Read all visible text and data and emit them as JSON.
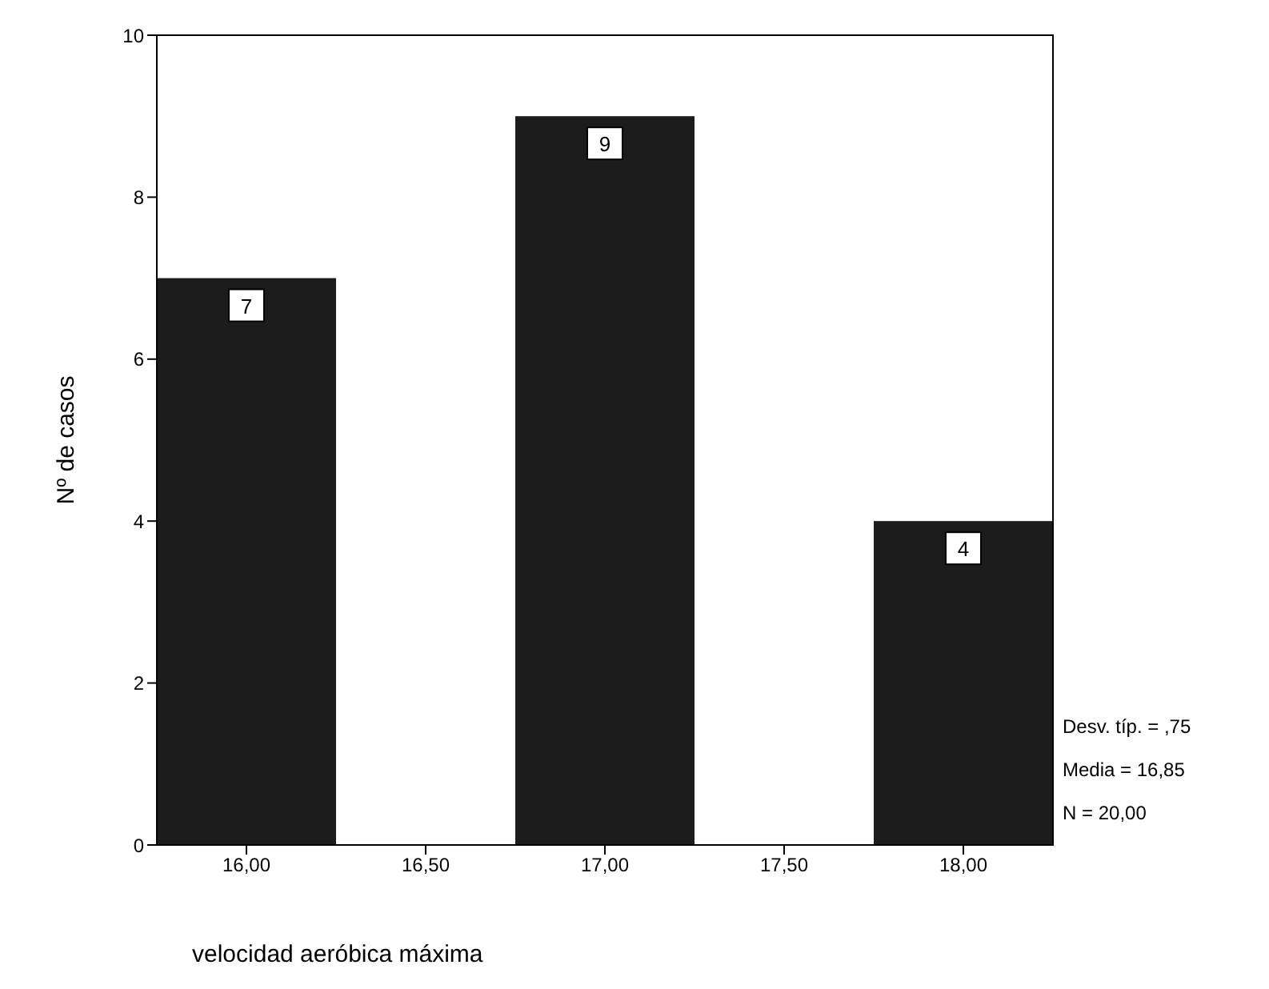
{
  "chart_data": {
    "type": "histogram",
    "xlabel": "velocidad aeróbica máxima",
    "ylabel": "Nº de casos",
    "bins": [
      15.75,
      16.25,
      16.75,
      17.25,
      17.75,
      18.25
    ],
    "values": [
      7,
      0,
      9,
      0,
      4
    ],
    "value_labels": [
      "7",
      null,
      "9",
      null,
      "4"
    ],
    "color": "#1c1c1c",
    "xlim": [
      15.75,
      18.25
    ],
    "xticks": [
      {
        "value": 16,
        "label": "16,00"
      },
      {
        "value": 16.5,
        "label": "16,50"
      },
      {
        "value": 17,
        "label": "17,00"
      },
      {
        "value": 17.5,
        "label": "17,50"
      },
      {
        "value": 18,
        "label": "18,00"
      }
    ],
    "ylim": [
      0,
      10
    ],
    "yticks": [
      0,
      2,
      4,
      6,
      8,
      10
    ],
    "grid": false,
    "legend": false,
    "annotations": [
      "Desv. típ. = ,75",
      "Media = 16,85",
      "N = 20,00"
    ]
  }
}
